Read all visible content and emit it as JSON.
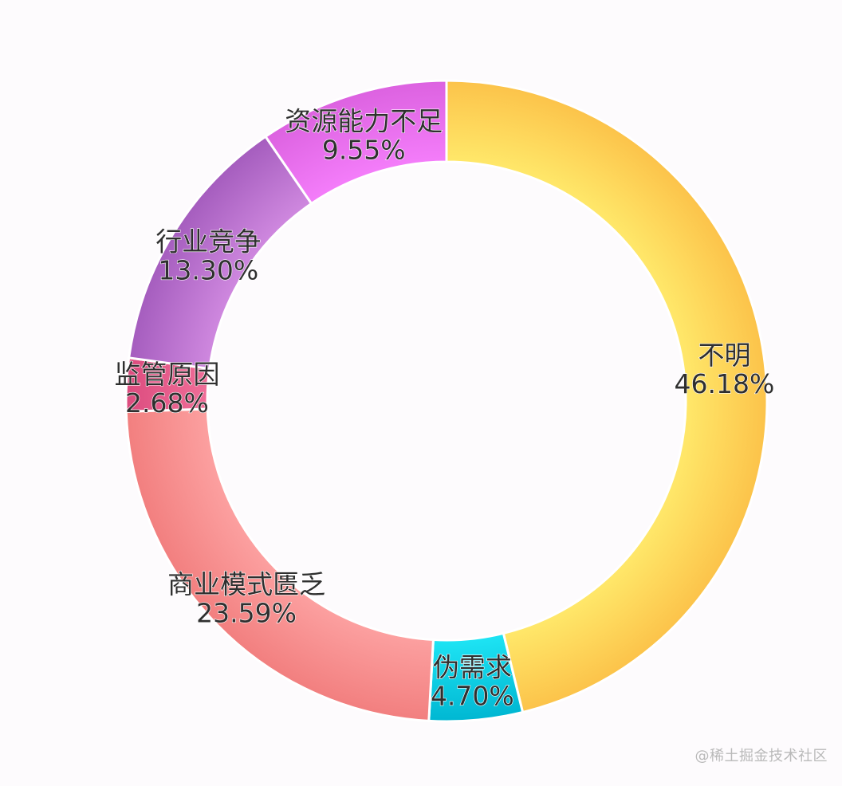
{
  "chart_data": {
    "type": "pie",
    "variant": "donut",
    "slices": [
      {
        "label": "不明",
        "value": 46.18,
        "value_label": "46.18%",
        "color": "#fcc34a",
        "highlight": "#ffe86a"
      },
      {
        "label": "伪需求",
        "value": 4.7,
        "value_label": "4.70%",
        "color": "#00b7d2",
        "highlight": "#1ee4f4"
      },
      {
        "label": "商业模式匮乏",
        "value": 23.59,
        "value_label": "23.59%",
        "color": "#f27f7f",
        "highlight": "#fca0a0"
      },
      {
        "label": "监管原因",
        "value": 2.68,
        "value_label": "2.68%",
        "color": "#dc4c7f",
        "highlight": "#f06e98"
      },
      {
        "label": "行业竞争",
        "value": 13.3,
        "value_label": "13.30%",
        "color": "#a55dbe",
        "highlight": "#cf88df"
      },
      {
        "label": "资源能力不足",
        "value": 9.55,
        "value_label": "9.55%",
        "color": "#dc62e0",
        "highlight": "#f47dfa"
      }
    ],
    "start_angle": "top",
    "direction": "clockwise",
    "legend": "none",
    "labels": "on-slice"
  },
  "watermark": "@稀土掘金技术社区"
}
